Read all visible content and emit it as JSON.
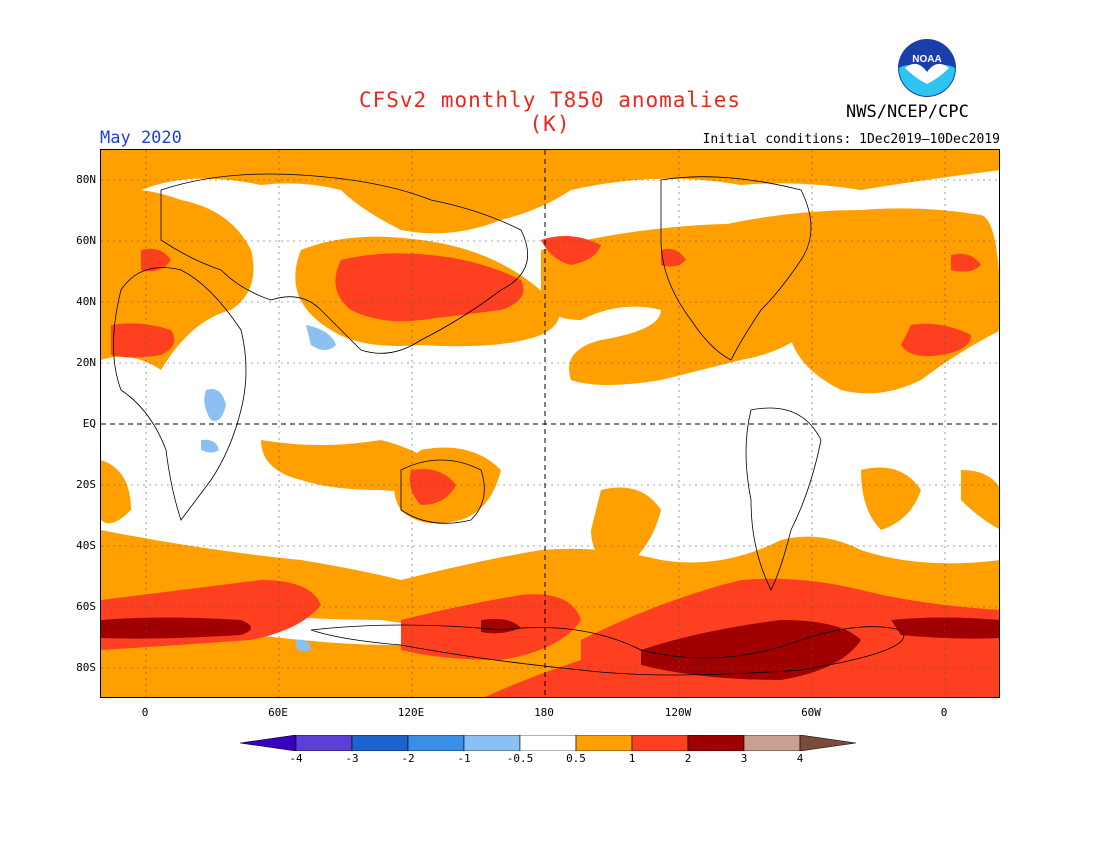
{
  "title": "CFSv2 monthly T850 anomalies (K)",
  "org": "NWS/NCEP/CPC",
  "period": "May 2020",
  "initial_conditions": "Initial conditions: 1Dec2019—10Dec2019",
  "logo_text": "NOAA",
  "lat_labels": [
    "80N",
    "60N",
    "40N",
    "20N",
    "EQ",
    "20S",
    "40S",
    "60S",
    "80S"
  ],
  "lon_labels": [
    "0",
    "60E",
    "120E",
    "180",
    "120W",
    "60W",
    "0"
  ],
  "colorbar": {
    "labels": [
      "-4",
      "-3",
      "-2",
      "-1",
      "-0.5",
      "0.5",
      "1",
      "2",
      "3",
      "4"
    ],
    "colors": [
      "#3a00c0",
      "#5b3fd6",
      "#1d63d0",
      "#3b8ee8",
      "#8cc0f2",
      "#ffffff",
      "#ffa000",
      "#ff4020",
      "#a00000",
      "#c8a090",
      "#7a4a3a"
    ]
  },
  "colors": {
    "title": "#e8291c",
    "period": "#1f3fe0",
    "warm1": "#ffa000",
    "warm2": "#ff4020",
    "warm3": "#a00000",
    "cool1": "#8cc0f2"
  }
}
